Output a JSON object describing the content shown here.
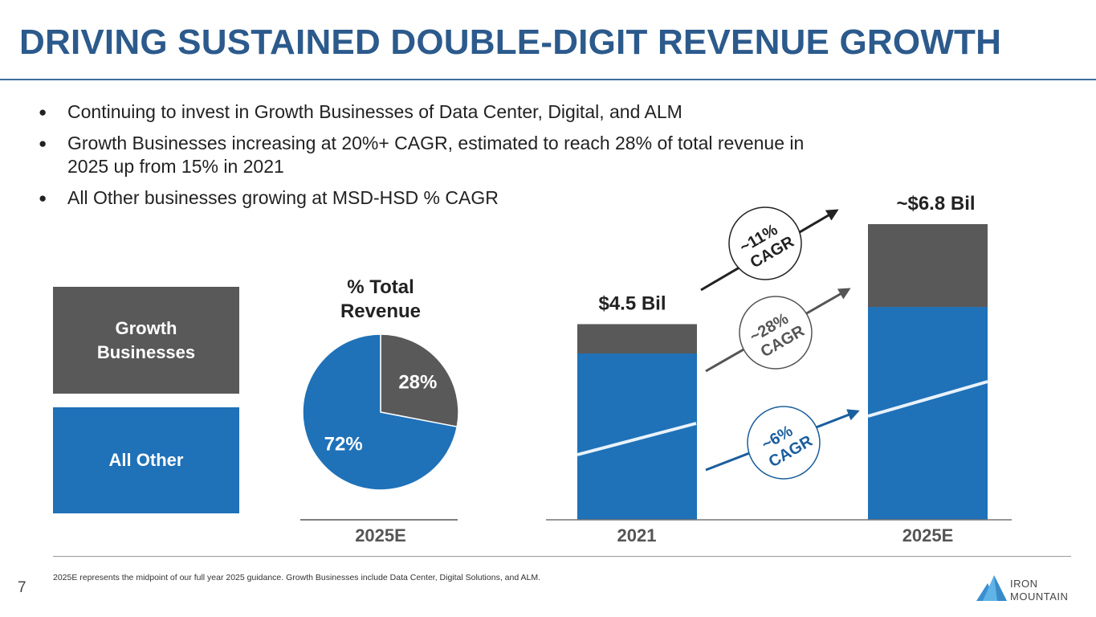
{
  "slide": {
    "title": "DRIVING SUSTAINED DOUBLE-DIGIT REVENUE GROWTH",
    "page_number": "7",
    "footnote": "2025E represents the midpoint of our full year 2025 guidance.  Growth Businesses include Data Center, Digital Solutions, and ALM.",
    "logo": {
      "line1": "IRON",
      "line2": "MOUNTAIN",
      "icon": "mountain-logo-icon"
    }
  },
  "bullets": [
    {
      "icon": "bullet-dot",
      "glyph": "●",
      "text": "Continuing to invest in Growth Businesses of Data Center, Digital, and ALM"
    },
    {
      "icon": "bullet-dot",
      "glyph": "●",
      "text": "Growth Businesses increasing at 20%+ CAGR, estimated to reach 28% of total revenue in 2025 up from 15% in 2021"
    },
    {
      "icon": "bullet-dot",
      "glyph": "●",
      "text": "All Other businesses growing at MSD-HSD % CAGR"
    }
  ],
  "legend": [
    {
      "label": "Growth Businesses",
      "color": "#595959"
    },
    {
      "label": "All Other",
      "color": "#1f71b8"
    }
  ],
  "colors": {
    "growth": "#595959",
    "other": "#1f71b8",
    "title": "#2c5a8c",
    "cagr_total": "#222222",
    "cagr_growth": "#555555",
    "cagr_other": "#1b5e9e"
  },
  "chart_data": [
    {
      "type": "pie",
      "title": "% Total Revenue",
      "xlabel": "2025E",
      "slices": [
        {
          "name": "Growth Businesses",
          "value": 28,
          "label": "28%"
        },
        {
          "name": "All Other",
          "value": 72,
          "label": "72%"
        }
      ]
    },
    {
      "type": "bar",
      "stacked": true,
      "categories": [
        "2021",
        "2025E"
      ],
      "series": [
        {
          "name": "All Other",
          "values": [
            3.825,
            4.896
          ]
        },
        {
          "name": "Growth Businesses",
          "values": [
            0.675,
            1.904
          ]
        }
      ],
      "totals": [
        4.5,
        6.8
      ],
      "total_labels": [
        "$4.5 Bil",
        "~$6.8 Bil"
      ],
      "units": "USD billions",
      "annotations": [
        {
          "series": "Total",
          "label_line1": "~11%",
          "label_line2": "CAGR"
        },
        {
          "series": "Growth Businesses",
          "label_line1": "~28%",
          "label_line2": "CAGR"
        },
        {
          "series": "All Other",
          "label_line1": "~6%",
          "label_line2": "CAGR"
        }
      ],
      "ylim": [
        0,
        6.8
      ]
    }
  ]
}
